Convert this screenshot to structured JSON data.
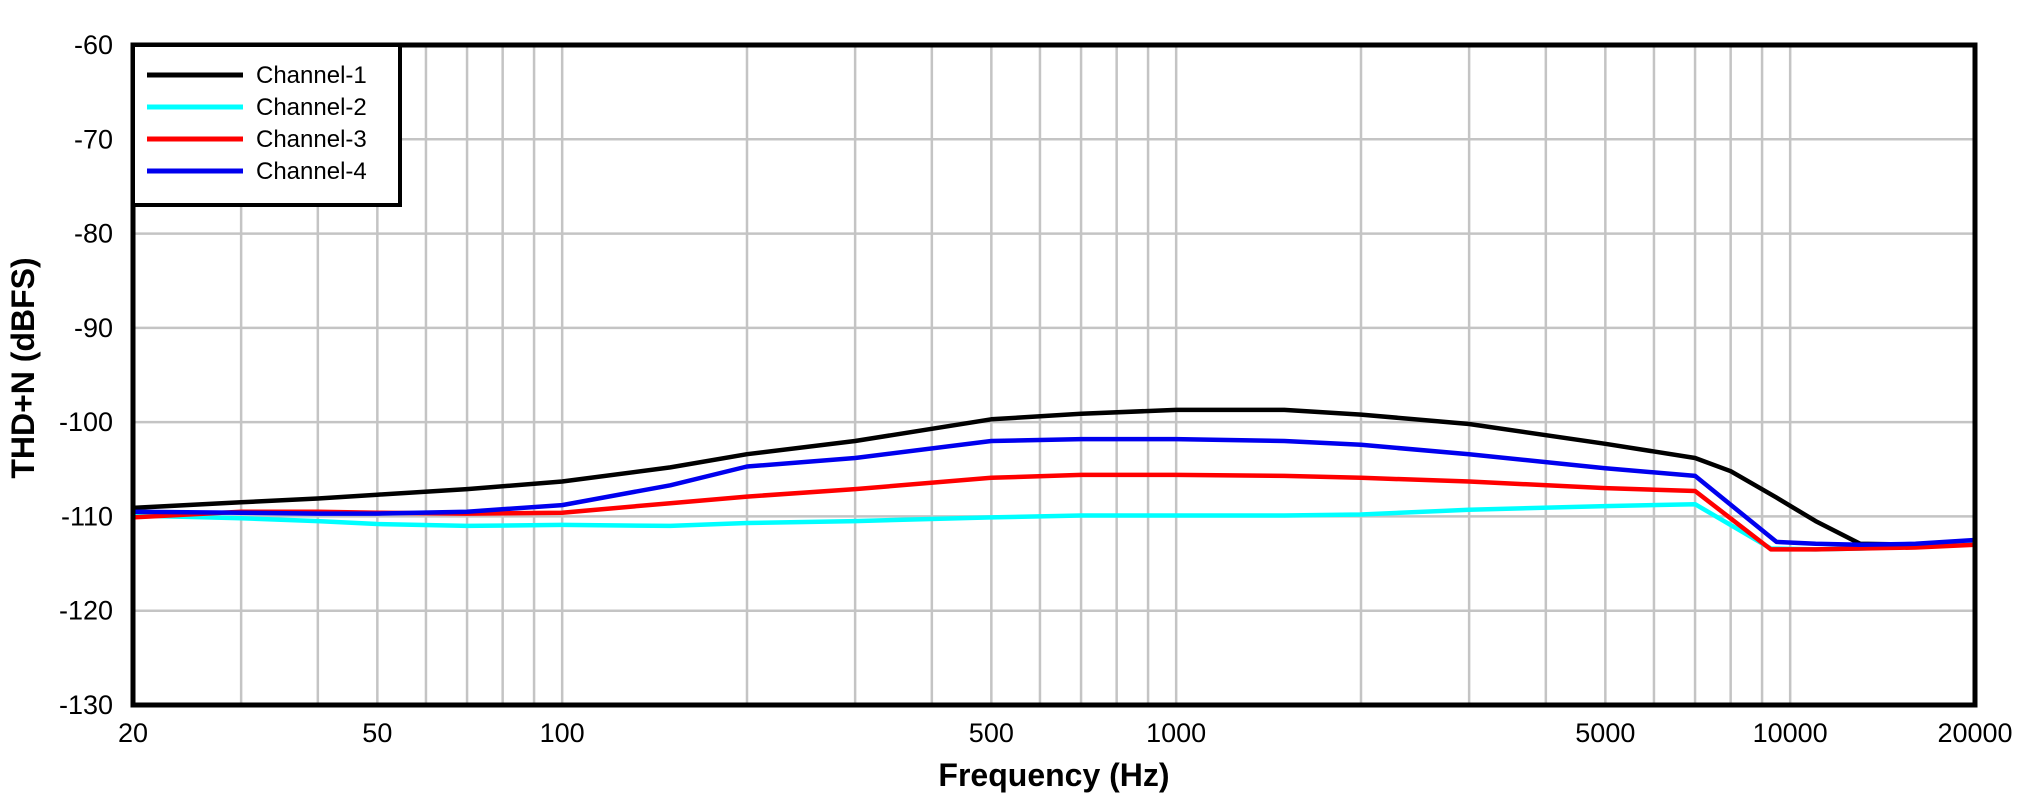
{
  "figure": {
    "background_color": "#ffffff",
    "frame_color": "#000000",
    "grid_color": "#c4c4c4"
  },
  "chart_data": {
    "type": "line",
    "title": "",
    "xlabel": "Frequency (Hz)",
    "ylabel": "THD+N (dBFS)",
    "x_scale": "log",
    "xlim": [
      20,
      20000
    ],
    "ylim": [
      -130,
      -60
    ],
    "x_tick_labels": [
      "20",
      "50",
      "100",
      "500",
      "1000",
      "5000",
      "10000",
      "20000"
    ],
    "x_tick_values": [
      20,
      50,
      100,
      500,
      1000,
      5000,
      10000,
      20000
    ],
    "x_gridlines": [
      20,
      30,
      40,
      50,
      60,
      70,
      80,
      90,
      100,
      200,
      300,
      400,
      500,
      600,
      700,
      800,
      900,
      1000,
      2000,
      3000,
      4000,
      5000,
      6000,
      7000,
      8000,
      9000,
      10000,
      20000
    ],
    "y_ticks": [
      -60,
      -70,
      -80,
      -90,
      -100,
      -110,
      -120,
      -130
    ],
    "grid": true,
    "legend_position": "top-left",
    "legend_entries": [
      "Channel-1",
      "Channel-2",
      "Channel-3",
      "Channel-4"
    ],
    "series": [
      {
        "name": "Channel-1",
        "color": "#000000",
        "points": [
          [
            20,
            -109.1
          ],
          [
            30,
            -108.5
          ],
          [
            40,
            -108.1
          ],
          [
            50,
            -107.7
          ],
          [
            70,
            -107.1
          ],
          [
            100,
            -106.3
          ],
          [
            150,
            -104.8
          ],
          [
            200,
            -103.4
          ],
          [
            300,
            -102.0
          ],
          [
            500,
            -99.7
          ],
          [
            700,
            -99.1
          ],
          [
            1000,
            -98.7
          ],
          [
            1500,
            -98.7
          ],
          [
            2000,
            -99.2
          ],
          [
            3000,
            -100.2
          ],
          [
            5000,
            -102.3
          ],
          [
            7000,
            -103.8
          ],
          [
            8000,
            -105.2
          ],
          [
            9500,
            -108.0
          ],
          [
            11000,
            -110.5
          ],
          [
            13000,
            -112.9
          ],
          [
            16000,
            -113.0
          ],
          [
            20000,
            -112.7
          ]
        ]
      },
      {
        "name": "Channel-2",
        "color": "#00ffff",
        "points": [
          [
            20,
            -109.9
          ],
          [
            30,
            -110.2
          ],
          [
            40,
            -110.5
          ],
          [
            50,
            -110.8
          ],
          [
            70,
            -111.0
          ],
          [
            100,
            -110.9
          ],
          [
            150,
            -111.0
          ],
          [
            200,
            -110.7
          ],
          [
            300,
            -110.5
          ],
          [
            500,
            -110.1
          ],
          [
            700,
            -109.9
          ],
          [
            1000,
            -109.9
          ],
          [
            1500,
            -109.9
          ],
          [
            2000,
            -109.8
          ],
          [
            3000,
            -109.3
          ],
          [
            5000,
            -108.9
          ],
          [
            7000,
            -108.7
          ],
          [
            9300,
            -113.4
          ],
          [
            11000,
            -113.5
          ],
          [
            13000,
            -113.4
          ],
          [
            16000,
            -113.2
          ],
          [
            20000,
            -112.7
          ]
        ]
      },
      {
        "name": "Channel-3",
        "color": "#ff0000",
        "points": [
          [
            20,
            -110.1
          ],
          [
            30,
            -109.5
          ],
          [
            40,
            -109.5
          ],
          [
            50,
            -109.6
          ],
          [
            70,
            -109.7
          ],
          [
            100,
            -109.6
          ],
          [
            150,
            -108.6
          ],
          [
            200,
            -107.9
          ],
          [
            300,
            -107.1
          ],
          [
            500,
            -105.9
          ],
          [
            700,
            -105.6
          ],
          [
            1000,
            -105.6
          ],
          [
            1500,
            -105.7
          ],
          [
            2000,
            -105.9
          ],
          [
            3000,
            -106.3
          ],
          [
            5000,
            -107.0
          ],
          [
            7000,
            -107.3
          ],
          [
            9300,
            -113.5
          ],
          [
            11000,
            -113.5
          ],
          [
            13000,
            -113.4
          ],
          [
            16000,
            -113.3
          ],
          [
            20000,
            -113.0
          ]
        ]
      },
      {
        "name": "Channel-4",
        "color": "#0000ee",
        "points": [
          [
            20,
            -109.5
          ],
          [
            30,
            -109.6
          ],
          [
            40,
            -109.7
          ],
          [
            50,
            -109.7
          ],
          [
            70,
            -109.5
          ],
          [
            100,
            -108.8
          ],
          [
            150,
            -106.7
          ],
          [
            200,
            -104.7
          ],
          [
            300,
            -103.8
          ],
          [
            500,
            -102.0
          ],
          [
            700,
            -101.8
          ],
          [
            1000,
            -101.8
          ],
          [
            1500,
            -102.0
          ],
          [
            2000,
            -102.4
          ],
          [
            3000,
            -103.4
          ],
          [
            5000,
            -104.9
          ],
          [
            7000,
            -105.7
          ],
          [
            9500,
            -112.7
          ],
          [
            11000,
            -112.9
          ],
          [
            13000,
            -113.0
          ],
          [
            16000,
            -112.9
          ],
          [
            20000,
            -112.5
          ]
        ]
      }
    ]
  }
}
